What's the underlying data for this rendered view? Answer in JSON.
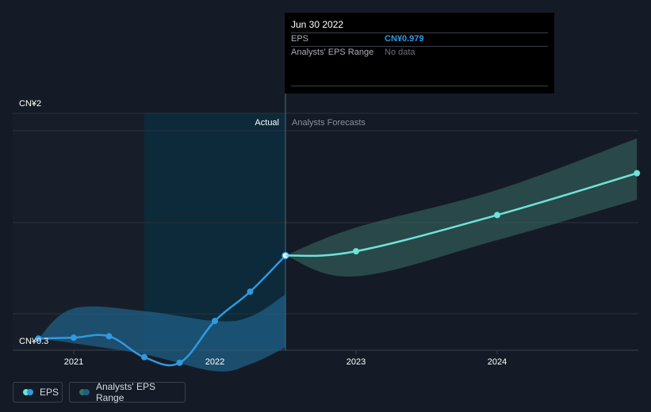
{
  "chart_data": {
    "type": "line",
    "y_tick_labels": [
      "CN¥2",
      "CN¥0.3"
    ],
    "ylim": [
      0.3,
      2
    ],
    "x_tick_labels": [
      "2021",
      "2022",
      "2023",
      "2024"
    ],
    "x_ticks": [
      2021,
      2022,
      2023,
      2024
    ],
    "xlim": [
      2020.58,
      2024.99
    ],
    "divider_x": 2022.5,
    "region_labels": {
      "actual": "Actual",
      "forecast": "Analysts Forecasts"
    },
    "series": [
      {
        "name": "EPS",
        "kind": "actual",
        "color": "#2f9ae0",
        "points": [
          [
            2020.75,
            0.384
          ],
          [
            2021.0,
            0.39
          ],
          [
            2021.25,
            0.4
          ],
          [
            2021.5,
            0.25
          ],
          [
            2021.75,
            0.21
          ],
          [
            2022.0,
            0.51
          ],
          [
            2022.25,
            0.72
          ],
          [
            2022.5,
            0.979
          ]
        ]
      },
      {
        "name": "EPS forecast",
        "kind": "forecast",
        "color": "#6fe3d5",
        "points": [
          [
            2022.5,
            0.979
          ],
          [
            2023.0,
            1.01
          ],
          [
            2024.0,
            1.27
          ],
          [
            2024.99,
            1.57
          ]
        ]
      }
    ],
    "range_bands": [
      {
        "name": "Analysts' EPS Range",
        "kind": "past",
        "color": "#1f5f86",
        "upper": [
          [
            2020.75,
            0.384
          ],
          [
            2021.0,
            0.6
          ],
          [
            2021.5,
            0.58
          ],
          [
            2022.0,
            0.51
          ],
          [
            2022.25,
            0.54
          ],
          [
            2022.5,
            0.7
          ]
        ],
        "lower": [
          [
            2020.75,
            0.384
          ],
          [
            2021.0,
            0.35
          ],
          [
            2021.5,
            0.27
          ],
          [
            2022.0,
            0.15
          ],
          [
            2022.25,
            0.2
          ],
          [
            2022.5,
            0.32
          ]
        ]
      },
      {
        "name": "Analysts' EPS Range",
        "kind": "forecast",
        "color": "#3a6e67",
        "upper": [
          [
            2022.5,
            0.979
          ],
          [
            2023.0,
            1.18
          ],
          [
            2024.0,
            1.45
          ],
          [
            2024.99,
            1.82
          ]
        ],
        "lower": [
          [
            2022.5,
            0.979
          ],
          [
            2023.0,
            0.83
          ],
          [
            2024.0,
            1.09
          ],
          [
            2024.99,
            1.38
          ]
        ]
      }
    ],
    "grid": true
  },
  "tooltip": {
    "date": "Jun 30 2022",
    "eps_label": "EPS",
    "eps_value": "CN¥0.979",
    "range_label": "Analysts' EPS Range",
    "range_value": "No data"
  },
  "legend": {
    "eps_label": "EPS",
    "range_label": "Analysts' EPS Range"
  },
  "colors": {
    "background": "#151b26",
    "actual_line": "#2f9ae0",
    "forecast_line": "#6fe3d5",
    "eps_value": "#2f9ae0"
  }
}
